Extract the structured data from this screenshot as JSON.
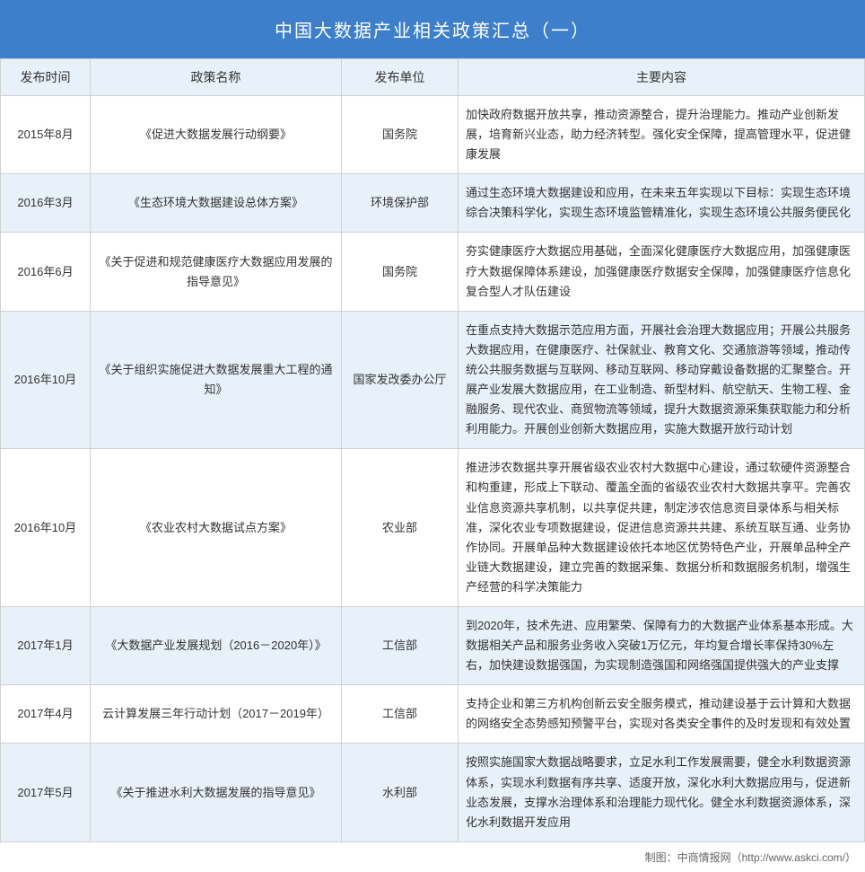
{
  "title": "中国大数据产业相关政策汇总（一）",
  "headers": {
    "date": "发布时间",
    "name": "政策名称",
    "dept": "发布单位",
    "content": "主要内容"
  },
  "colors": {
    "title_bg": "#3d7fca",
    "title_text": "#ffffff",
    "header_bg": "#e8f0f9",
    "row_even_bg": "#e8f0f9",
    "row_odd_bg": "#ffffff",
    "border": "#d0d0d0",
    "text": "#333333"
  },
  "rows": [
    {
      "date": "2015年8月",
      "name": "《促进大数据发展行动纲要》",
      "dept": "国务院",
      "content": "加快政府数据开放共享，推动资源整合，提升治理能力。推动产业创新发展，培育新兴业态，助力经济转型。强化安全保障，提高管理水平，促进健康发展"
    },
    {
      "date": "2016年3月",
      "name": "《生态环境大数据建设总体方案》",
      "dept": "环境保护部",
      "content": "通过生态环境大数据建设和应用，在未来五年实现以下目标：实现生态环境综合决策科学化，实现生态环境监管精准化，实现生态环境公共服务便民化"
    },
    {
      "date": "2016年6月",
      "name": "《关于促进和规范健康医疗大数据应用发展的指导意见》",
      "dept": "国务院",
      "content": "夯实健康医疗大数据应用基础，全面深化健康医疗大数据应用，加强健康医疗大数据保障体系建设，加强健康医疗数据安全保障，加强健康医疗信息化复合型人才队伍建设"
    },
    {
      "date": "2016年10月",
      "name": "《关于组织实施促进大数据发展重大工程的通知》",
      "dept": "国家发改委办公厅",
      "content": "在重点支持大数据示范应用方面，开展社会治理大数据应用；开展公共服务大数据应用，在健康医疗、社保就业、教育文化、交通旅游等领域，推动传统公共服务数据与互联网、移动互联网、移动穿戴设备数据的汇聚整合。开展产业发展大数据应用，在工业制造、新型材料、航空航天、生物工程、金融服务、现代农业、商贸物流等领域，提升大数据资源采集获取能力和分析利用能力。开展创业创新大数据应用，实施大数据开放行动计划"
    },
    {
      "date": "2016年10月",
      "name": "《农业农村大数据试点方案》",
      "dept": "农业部",
      "content": "推进涉农数据共享开展省级农业农村大数据中心建设，通过软硬件资源整合和构重建，形成上下联动、覆盖全面的省级农业农村大数据共享平。完善农业信息资源共享机制，以共享促共建，制定涉农信息资目录体系与相关标准，深化农业专项数据建设，促进信息资源共共建、系统互联互通、业务协作协同。开展单品种大数据建设依托本地区优势特色产业，开展单品种全产业链大数据建设，建立完善的数据采集、数据分析和数据服务机制，增强生产经营的科学决策能力"
    },
    {
      "date": "2017年1月",
      "name": "《大数据产业发展规划（2016－2020年）》",
      "dept": "工信部",
      "content": "到2020年，技术先进、应用繁荣、保障有力的大数据产业体系基本形成。大数据相关产品和服务业务收入突破1万亿元，年均复合增长率保持30%左右，加快建设数据强国，为实现制造强国和网络强国提供强大的产业支撑"
    },
    {
      "date": "2017年4月",
      "name": "云计算发展三年行动计划（2017－2019年）",
      "dept": "工信部",
      "content": "支持企业和第三方机构创新云安全服务模式，推动建设基于云计算和大数据的网络安全态势感知预警平台，实现对各类安全事件的及时发现和有效处置"
    },
    {
      "date": "2017年5月",
      "name": "《关于推进水利大数据发展的指导意见》",
      "dept": "水利部",
      "content": "按照实施国家大数据战略要求，立足水利工作发展需要，健全水利数据资源体系，实现水利数据有序共享、适度开放，深化水利大数据应用与，促进新业态发展，支撑水治理体系和治理能力现代化。健全水利数据资源体系，深化水利数据开发应用"
    }
  ],
  "footer": "制图：中商情报网（http://www.askci.com/）"
}
